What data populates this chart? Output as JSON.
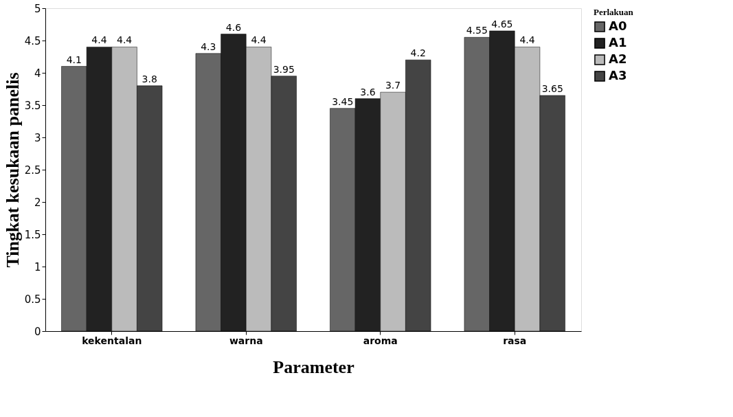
{
  "chart_data": {
    "type": "bar",
    "xlabel": "Parameter",
    "ylabel": "Tingkat kesukaan panelis",
    "legend_title": "Perlakuan",
    "categories": [
      "kekentalan",
      "warna",
      "aroma",
      "rasa"
    ],
    "series": [
      {
        "name": "A0",
        "color": "#666666",
        "values": [
          4.1,
          4.3,
          3.45,
          4.55
        ]
      },
      {
        "name": "A1",
        "color": "#222222",
        "values": [
          4.4,
          4.6,
          3.6,
          4.65
        ]
      },
      {
        "name": "A2",
        "color": "#bbbbbb",
        "values": [
          4.4,
          4.4,
          3.7,
          4.4
        ]
      },
      {
        "name": "A3",
        "color": "#444444",
        "values": [
          3.8,
          3.95,
          4.2,
          3.65
        ]
      }
    ],
    "ylim": [
      0,
      5
    ],
    "yticks": [
      0,
      0.5,
      1,
      1.5,
      2,
      2.5,
      3,
      3.5,
      4,
      4.5,
      5
    ],
    "grid": false,
    "legend": "right",
    "data_labels": true
  }
}
